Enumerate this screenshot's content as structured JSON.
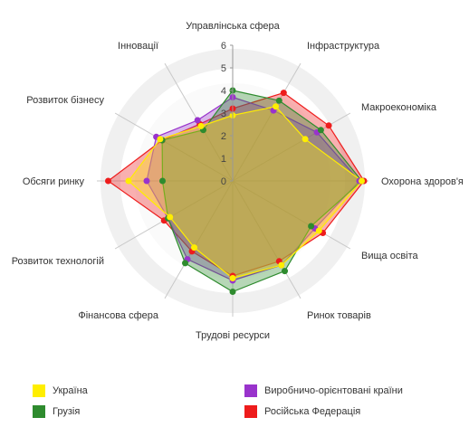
{
  "chart_data": {
    "type": "radar",
    "axes": [
      "Управлінська сфера",
      "Інфраструктура",
      "Макроекономіка",
      "Охорона здоров'я",
      "Вища освіта",
      "Ринок товарів",
      "Трудові ресурси",
      "Фінансова сфера",
      "Розвиток технологій",
      "Обсяги ринку",
      "Розвиток бізнесу",
      "Інновації"
    ],
    "r_ticks": [
      "0",
      "1",
      "2",
      "3",
      "4",
      "5",
      "6"
    ],
    "r_range": [
      0,
      6
    ],
    "series": [
      {
        "name": "Росiйська Федерацiя",
        "color": "#ee1c1c",
        "values": [
          3.2,
          4.5,
          4.9,
          5.8,
          4.6,
          4.1,
          4.2,
          3.6,
          3.5,
          5.5,
          3.6,
          2.9
        ]
      },
      {
        "name": "Виробничо-орiєнтованi країни",
        "color": "#9933cc",
        "values": [
          3.7,
          3.6,
          4.3,
          5.6,
          4.2,
          4.3,
          4.4,
          4.0,
          3.3,
          3.8,
          3.9,
          3.1
        ]
      },
      {
        "name": "Грузiя",
        "color": "#2e8b2e",
        "values": [
          4.0,
          4.1,
          4.5,
          5.7,
          4.0,
          4.6,
          4.9,
          4.2,
          3.3,
          3.1,
          3.6,
          2.6
        ]
      },
      {
        "name": "Україна",
        "color": "#ffee00",
        "values": [
          2.9,
          3.8,
          3.7,
          5.7,
          4.4,
          4.3,
          4.3,
          3.4,
          3.2,
          4.6,
          3.7,
          2.8
        ]
      }
    ],
    "legend": [
      {
        "label": "Україна",
        "color": "#ffee00"
      },
      {
        "label": "Виробничо-орiєнтованi країни",
        "color": "#9933cc"
      },
      {
        "label": "Грузiя",
        "color": "#2e8b2e"
      },
      {
        "label": "Росiйська Федерацiя",
        "color": "#ee1c1c"
      }
    ],
    "legend_placement": "bottom",
    "grid": true
  }
}
